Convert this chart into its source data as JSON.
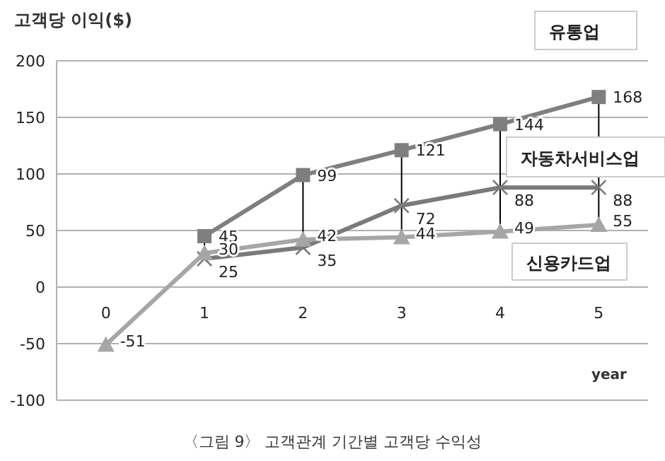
{
  "chart_data": {
    "type": "line",
    "ylabel": "고객당 이익($)",
    "xlabel": "year",
    "annotations": [
      "〈그림 9〉 고객관계 기간별 고객당 수익성"
    ],
    "categories": [
      "0",
      "1",
      "2",
      "3",
      "4",
      "5"
    ],
    "series": [
      {
        "name": "유통업",
        "color": "#7f7f7f",
        "marker": "square",
        "values": [
          null,
          45,
          99,
          121,
          144,
          168
        ]
      },
      {
        "name": "자동차서비스업",
        "color": "#7a7a7a",
        "marker": "cross",
        "values": [
          null,
          25,
          35,
          72,
          88,
          88
        ]
      },
      {
        "name": "신용카드업",
        "color": "#a6a6a6",
        "marker": "triangle",
        "values": [
          -51,
          30,
          42,
          44,
          49,
          55
        ]
      }
    ],
    "ylim": [
      -100,
      200
    ],
    "yticks": [
      -100,
      -50,
      0,
      50,
      100,
      150,
      200
    ],
    "grid": "y",
    "data_labels": true
  }
}
